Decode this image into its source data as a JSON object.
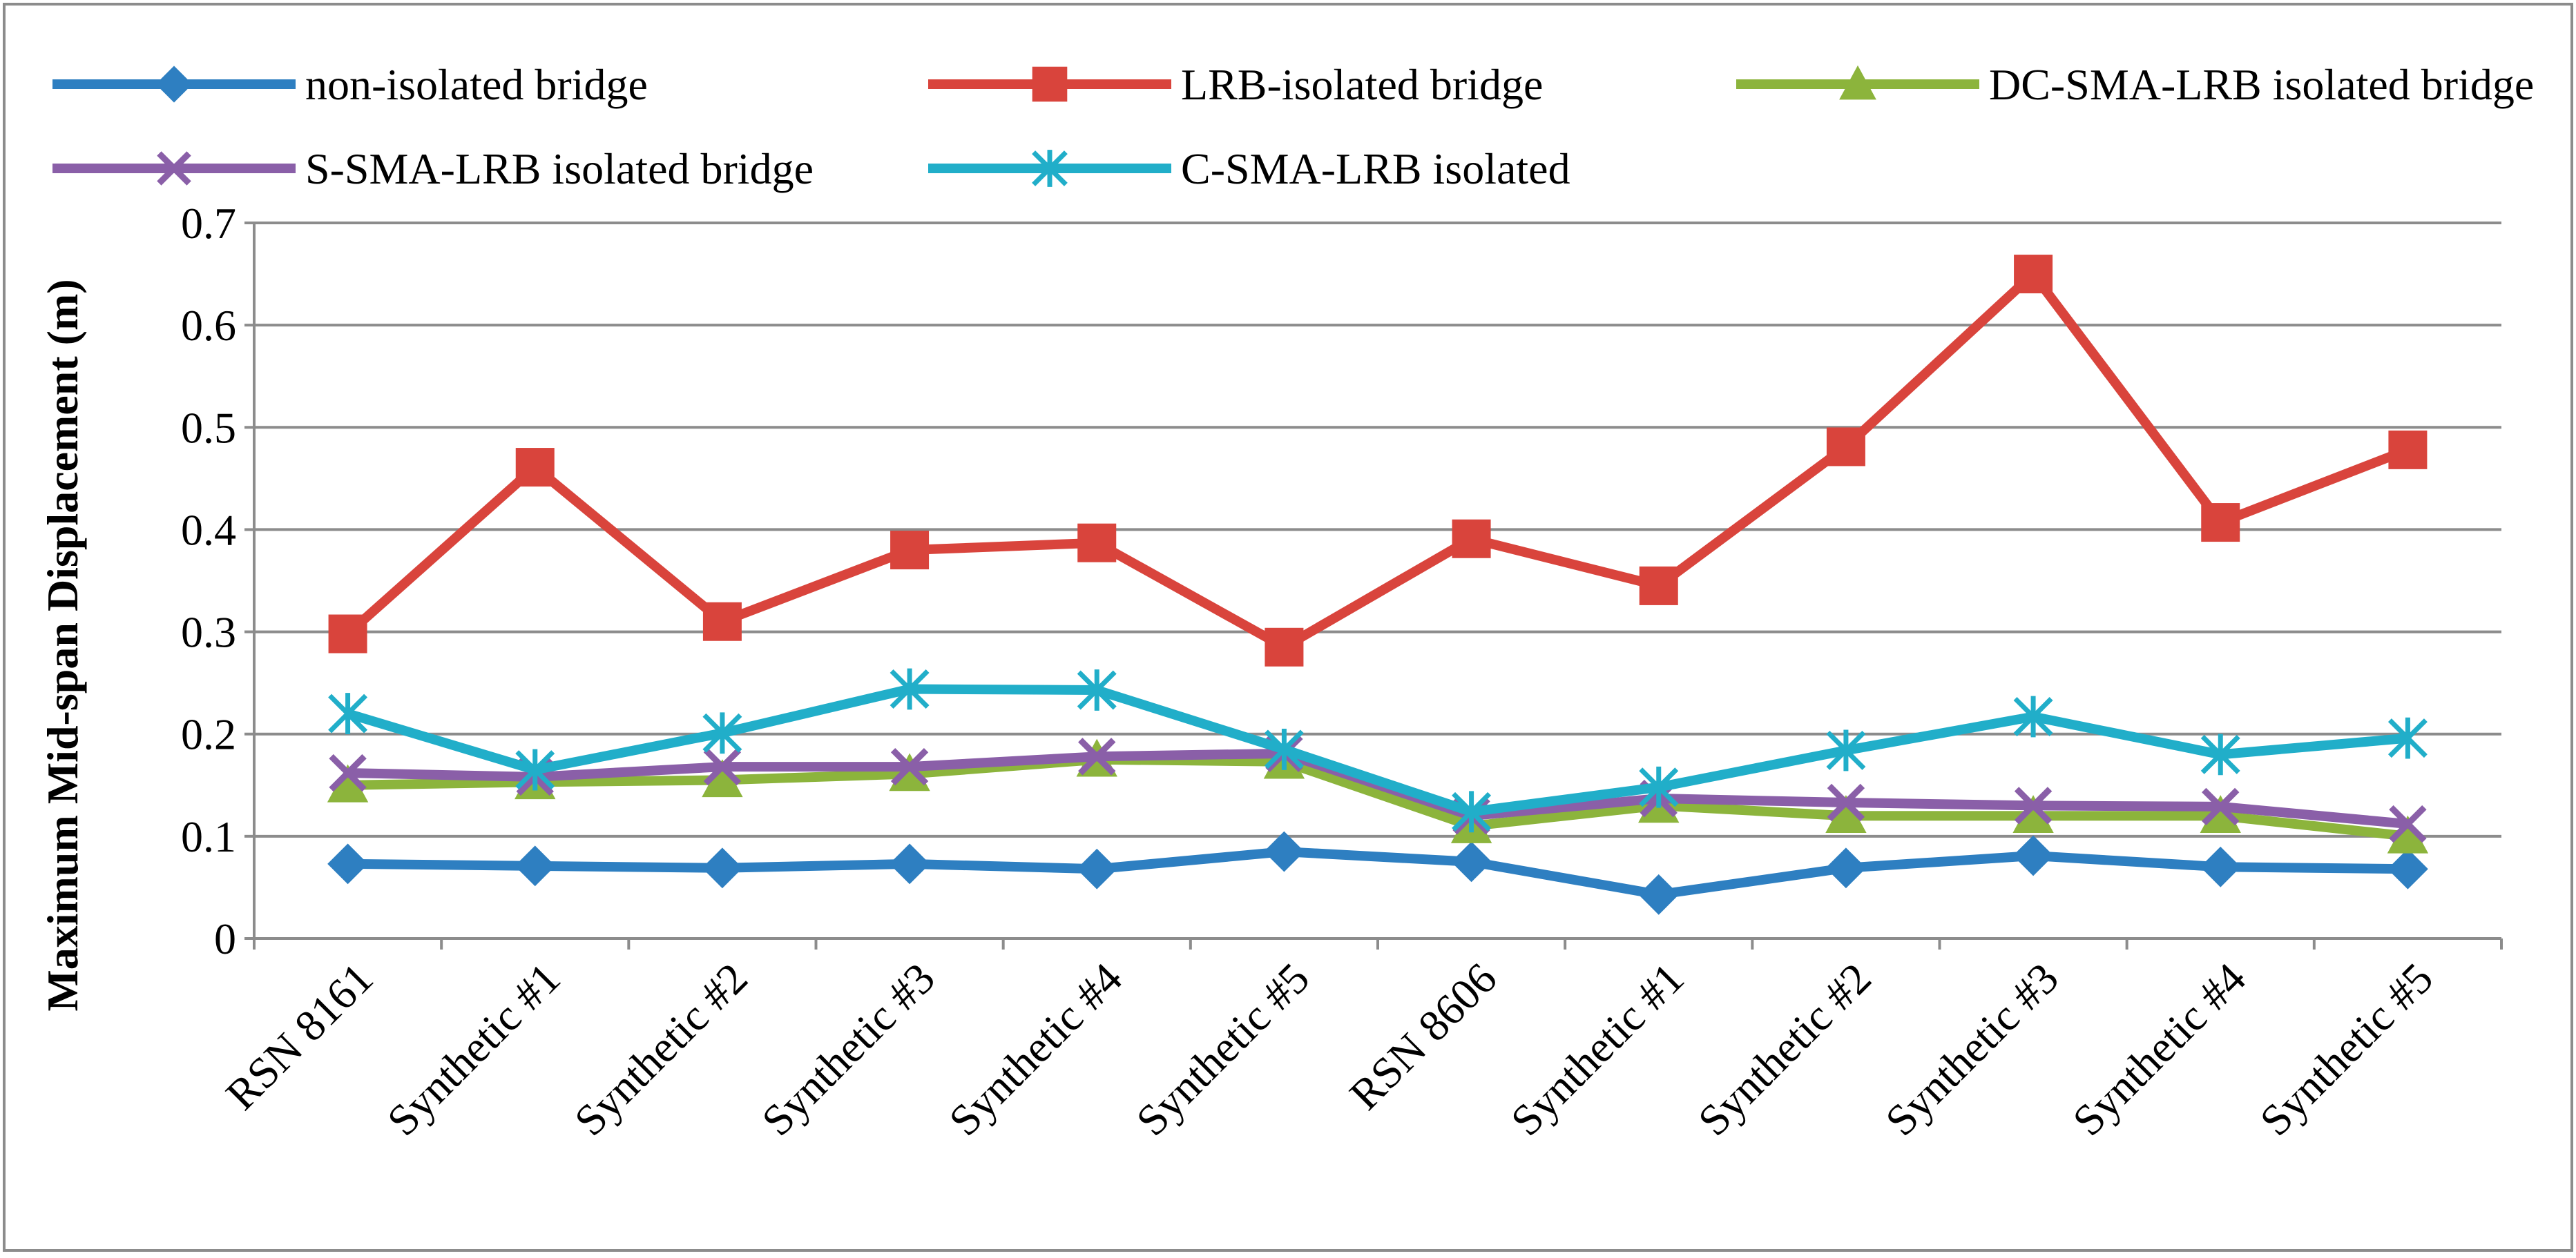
{
  "chart_data": {
    "type": "line",
    "title": "",
    "xlabel": "",
    "ylabel": "Maximum Mid-span Displacement (m)",
    "ylim": [
      0,
      0.7
    ],
    "yticks": [
      "0",
      "0.1",
      "0.2",
      "0.3",
      "0.4",
      "0.5",
      "0.6",
      "0.7"
    ],
    "grid": true,
    "legend": "top",
    "categories": [
      "RSN 8161",
      "Synthetic #1",
      "Synthetic #2",
      "Synthetic #3",
      "Synthetic #4",
      "Synthetic #5",
      "RSN 8606",
      "Synthetic #1",
      "Synthetic #2",
      "Synthetic #3",
      "Synthetic #4",
      "Synthetic #5"
    ],
    "series": [
      {
        "name": "non-isolated bridge",
        "color": "#2e7fc1",
        "marker": "diamond",
        "values": [
          0.073,
          0.071,
          0.069,
          0.073,
          0.068,
          0.085,
          0.075,
          0.043,
          0.069,
          0.081,
          0.07,
          0.068
        ]
      },
      {
        "name": "LRB-isolated bridge",
        "color": "#d9443c",
        "marker": "square",
        "values": [
          0.298,
          0.461,
          0.31,
          0.38,
          0.387,
          0.285,
          0.391,
          0.345,
          0.481,
          0.65,
          0.407,
          0.478
        ]
      },
      {
        "name": "DC-SMA-LRB isolated bridge",
        "color": "#8cb43c",
        "marker": "triangle",
        "values": [
          0.15,
          0.153,
          0.155,
          0.161,
          0.175,
          0.173,
          0.11,
          0.13,
          0.12,
          0.12,
          0.12,
          0.1
        ]
      },
      {
        "name": "S-SMA-LRB isolated bridge",
        "color": "#8a5fa8",
        "marker": "x",
        "values": [
          0.162,
          0.158,
          0.168,
          0.168,
          0.178,
          0.181,
          0.12,
          0.137,
          0.133,
          0.13,
          0.129,
          0.112
        ]
      },
      {
        "name": "C-SMA-LRB isolated",
        "color": "#21aec9",
        "marker": "asterisk",
        "values": [
          0.22,
          0.165,
          0.201,
          0.244,
          0.243,
          0.185,
          0.124,
          0.148,
          0.184,
          0.217,
          0.18,
          0.196
        ]
      }
    ]
  }
}
